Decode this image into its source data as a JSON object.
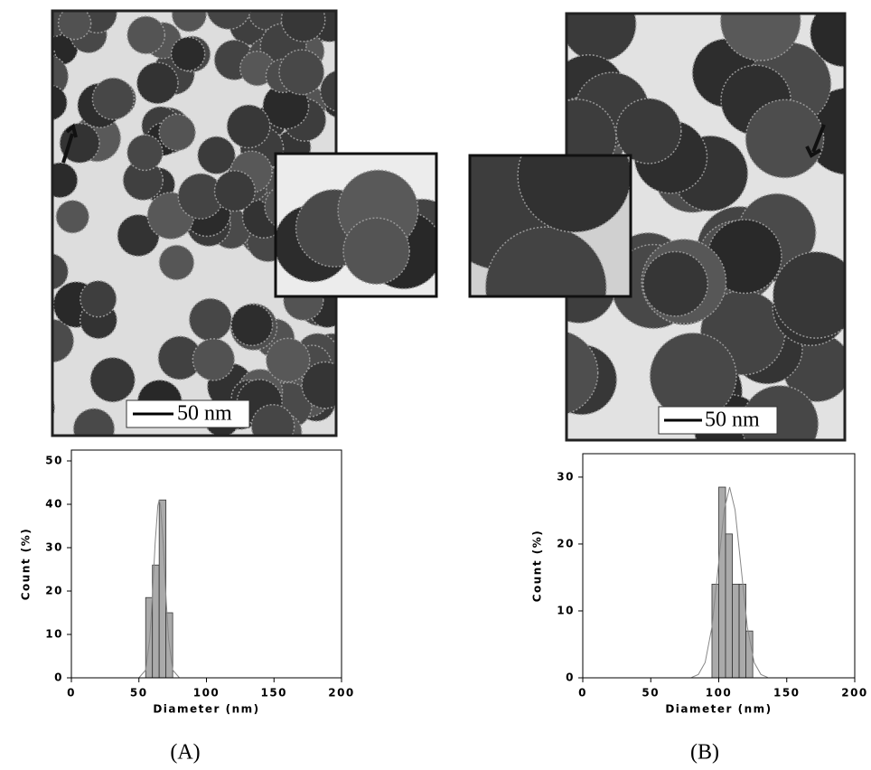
{
  "panels": [
    {
      "label": "(A)",
      "scale_bar": "50 nm"
    },
    {
      "label": "(B)",
      "scale_bar": "50 nm"
    }
  ],
  "chart_data": [
    {
      "type": "histogram",
      "x_label": "Diameter (nm)",
      "y_label": "Count (%)",
      "bins": [
        55,
        60,
        65,
        70,
        75
      ],
      "counts": [
        18.5,
        26,
        41,
        15
      ],
      "color": "#aaaaaa",
      "fit": {
        "x": [
          50,
          55,
          58,
          60,
          62,
          64,
          65,
          66,
          68,
          70,
          72,
          75,
          80
        ],
        "values": [
          0,
          1.8,
          8.9,
          18.8,
          31,
          39.7,
          41,
          39.7,
          31,
          18.8,
          8.9,
          1.8,
          0
        ],
        "color": "#888888"
      },
      "xlim": [
        0,
        200
      ],
      "xticks": [
        0,
        50,
        100,
        150,
        200
      ],
      "ylim": [
        0,
        52.5
      ],
      "yticks": [
        0,
        10,
        20,
        30,
        40,
        50
      ]
    },
    {
      "type": "histogram",
      "x_label": "Diameter (nm)",
      "y_label": "Count (%)",
      "bins": [
        95,
        100,
        105,
        110,
        115,
        120,
        125
      ],
      "counts": [
        14,
        28.5,
        21.5,
        14,
        14,
        7
      ],
      "color": "#aaaaaa",
      "fit": {
        "x": [
          80,
          85,
          90,
          95,
          100,
          104,
          108,
          112,
          116,
          121,
          126,
          131,
          136
        ],
        "values": [
          0.06,
          0.5,
          2.3,
          7.6,
          17.3,
          25.1,
          28.5,
          25.1,
          17.3,
          7.6,
          2.3,
          0.5,
          0.06
        ],
        "color": "#888888"
      },
      "xlim": [
        0,
        200
      ],
      "xticks": [
        0,
        50,
        100,
        150,
        200
      ],
      "ylim": [
        0,
        33.5
      ],
      "yticks": [
        0,
        10,
        20,
        30
      ]
    }
  ]
}
